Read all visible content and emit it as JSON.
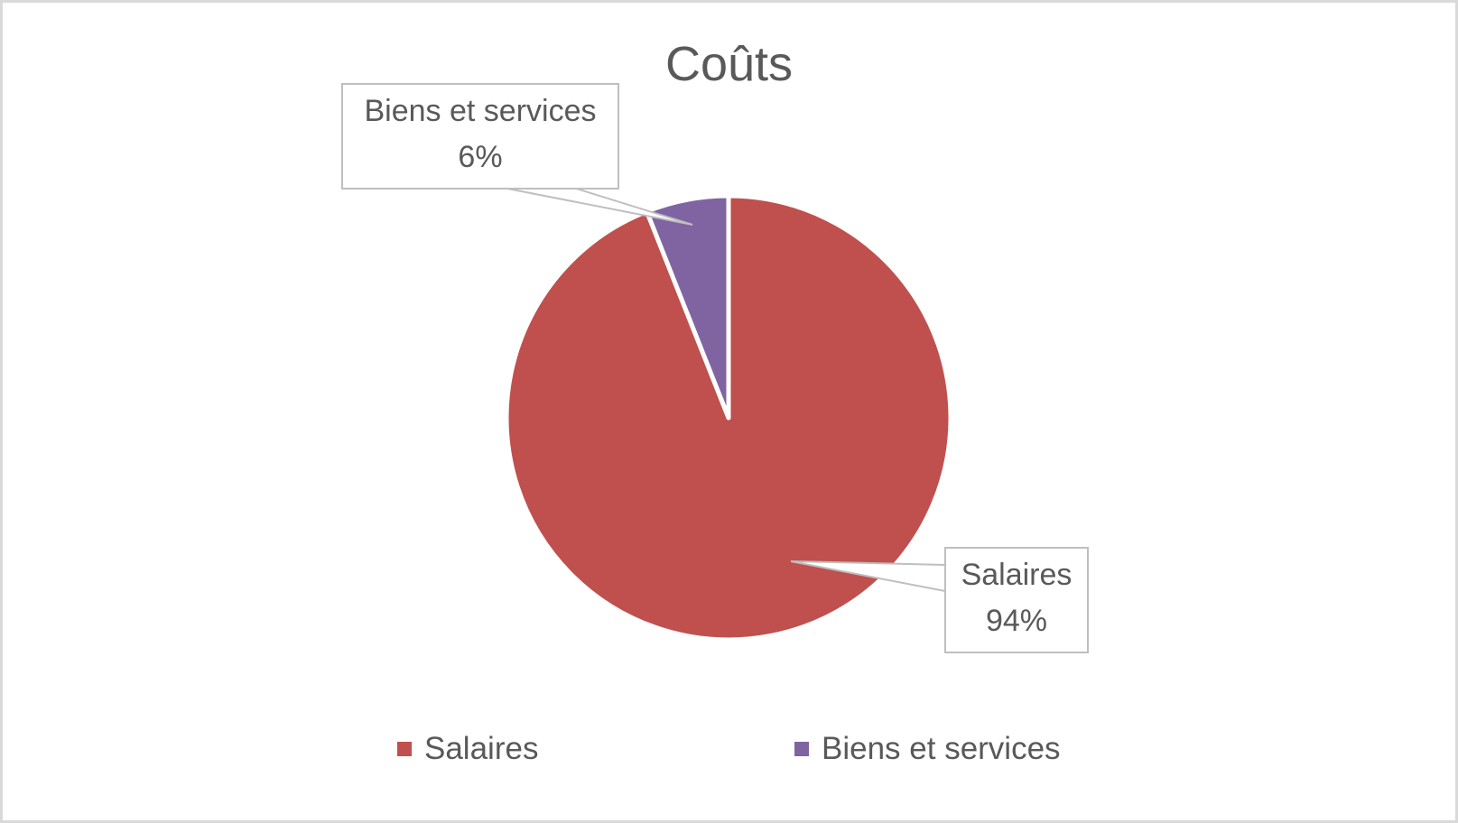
{
  "chart_data": {
    "type": "pie",
    "title": "Coûts",
    "categories": [
      "Salaires",
      "Biens et services"
    ],
    "values": [
      94,
      6
    ],
    "value_format": "percent",
    "colors": [
      "#c0504d",
      "#8064a2"
    ],
    "data_labels": [
      {
        "category": "Salaires",
        "text": "94%"
      },
      {
        "category": "Biens et services",
        "text": "6%"
      }
    ],
    "legend": {
      "position": "bottom",
      "entries": [
        "Salaires",
        "Biens et services"
      ]
    }
  },
  "title": "Coûts",
  "labels": {
    "biens": {
      "name": "Biens et services",
      "pct": "6%"
    },
    "salaires": {
      "name": "Salaires",
      "pct": "94%"
    }
  },
  "legend": {
    "items": [
      {
        "label": "Salaires",
        "color": "#c0504d"
      },
      {
        "label": "Biens et services",
        "color": "#8064a2"
      }
    ]
  }
}
